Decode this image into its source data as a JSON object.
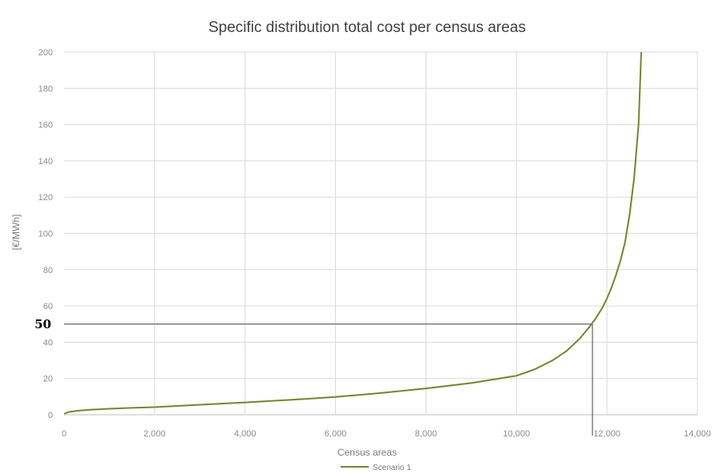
{
  "chart_data": {
    "type": "line",
    "title": "Specific distribution total cost per census areas",
    "xlabel": "Census areas",
    "ylabel": "[€/MWh]",
    "xlim": [
      0,
      14000
    ],
    "ylim": [
      0,
      200
    ],
    "x_ticks": [
      0,
      2000,
      4000,
      6000,
      8000,
      10000,
      12000,
      14000
    ],
    "x_tick_labels": [
      "0",
      "2,000",
      "4,000",
      "6,000",
      "8,000",
      "10,000",
      "12,000",
      "14,000"
    ],
    "y_ticks": [
      0,
      20,
      40,
      60,
      80,
      100,
      120,
      140,
      160,
      180,
      200
    ],
    "y_tick_labels": [
      "0",
      "20",
      "40",
      "60",
      "80",
      "100",
      "120",
      "140",
      "160",
      "180",
      "200"
    ],
    "grid": "both",
    "legend_position": "bottom",
    "series": [
      {
        "name": "Scenario 1",
        "color": "#70882a",
        "x": [
          0,
          100,
          300,
          600,
          1000,
          1500,
          2000,
          3000,
          4000,
          5000,
          6000,
          7000,
          8000,
          9000,
          9500,
          10000,
          10400,
          10800,
          11100,
          11400,
          11600,
          11750,
          11900,
          12000,
          12100,
          12200,
          12300,
          12400,
          12500,
          12600,
          12700,
          12760
        ],
        "y": [
          0.5,
          1.5,
          2.2,
          2.8,
          3.3,
          3.8,
          4.2,
          5.5,
          6.8,
          8.2,
          9.8,
          12,
          14.5,
          17.5,
          19.5,
          21.5,
          25,
          30,
          35,
          42,
          48,
          53,
          59,
          64,
          70,
          77,
          85,
          95,
          110,
          130,
          160,
          200
        ]
      }
    ],
    "annotations": [
      {
        "label": "50",
        "y": 50,
        "x_at_curve": 11680
      }
    ]
  }
}
